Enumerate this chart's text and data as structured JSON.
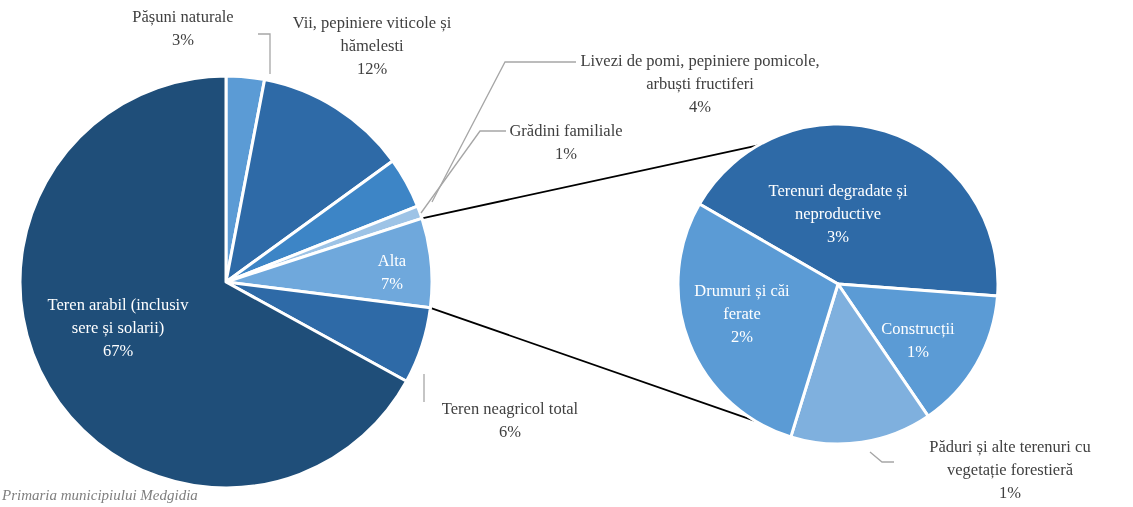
{
  "chart_data": [
    {
      "type": "pie",
      "categories": [
        "Pășuni naturale",
        "Vii, pepiniere viticole și hămelesti",
        "Livezi de pomi, pepiniere pomicole, arbuști fructiferi",
        "Grădini familiale",
        "Alta",
        "Teren neagricol total",
        "Teren arabil (inclusiv sere și solarii)"
      ],
      "values": [
        3,
        12,
        4,
        1,
        7,
        6,
        67
      ],
      "value_labels": [
        "3%",
        "12%",
        "4%",
        "1%",
        "7%",
        "6%",
        "67%"
      ],
      "colors": [
        "#5b9bd5",
        "#2e6aa7",
        "#3d85c6",
        "#9dc3e6",
        "#6fa8dc",
        "#2e6aa7",
        "#1f4e79"
      ],
      "annotations": [
        "Primaria municipiului Medgidia"
      ]
    },
    {
      "type": "pie",
      "categories": [
        "Terenuri degradate și neproductive",
        "Construcții",
        "Păduri și alte terenuri cu vegetație forestieră",
        "Drumuri și căi ferate"
      ],
      "values": [
        3,
        1,
        1,
        2
      ],
      "value_labels": [
        "3%",
        "1%",
        "1%",
        "2%"
      ],
      "colors": [
        "#2e6aa7",
        "#5b9bd5",
        "#7fb0de",
        "#5b9bd5"
      ]
    }
  ]
}
